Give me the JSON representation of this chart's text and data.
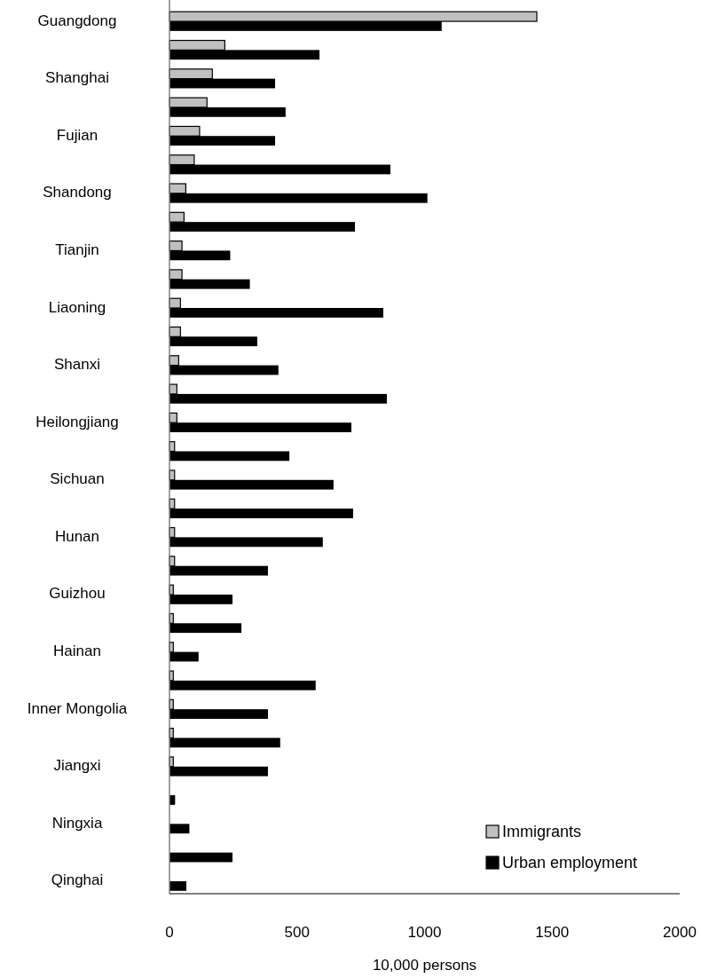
{
  "chart_data": {
    "type": "bar",
    "orientation": "horizontal",
    "xlabel": "10,000 persons",
    "categories": [
      "Guangdong",
      null,
      "Shanghai",
      null,
      "Fujian",
      null,
      "Shandong",
      null,
      "Tianjin",
      null,
      "Liaoning",
      null,
      "Shanxi",
      null,
      "Heilongjiang",
      null,
      "Sichuan",
      null,
      "Hunan",
      null,
      "Guizhou",
      null,
      "Hainan",
      null,
      "Inner Mongolia",
      null,
      "Jiangxi",
      null,
      "Ningxia",
      null,
      "Qinghai"
    ],
    "series": [
      {
        "name": "Immigrants",
        "color": "#c0c0c0",
        "values": [
          1440,
          217,
          168,
          147,
          118,
          97,
          64,
          57,
          49,
          49,
          43,
          43,
          36,
          29,
          29,
          20,
          20,
          20,
          20,
          20,
          15,
          15,
          15,
          15,
          15,
          15,
          15,
          0,
          0,
          0,
          0
        ]
      },
      {
        "name": "Urban employment",
        "color": "#000000",
        "values": [
          1067,
          588,
          414,
          455,
          414,
          866,
          1011,
          727,
          238,
          315,
          838,
          344,
          427,
          852,
          713,
          470,
          643,
          720,
          601,
          386,
          247,
          282,
          114,
          573,
          386,
          434,
          386,
          22,
          78,
          247,
          66
        ]
      }
    ],
    "xlim": [
      0,
      2000
    ],
    "xticks": [
      0,
      500,
      1000,
      1500,
      2000
    ],
    "legend": "bottom right",
    "grid": false
  }
}
